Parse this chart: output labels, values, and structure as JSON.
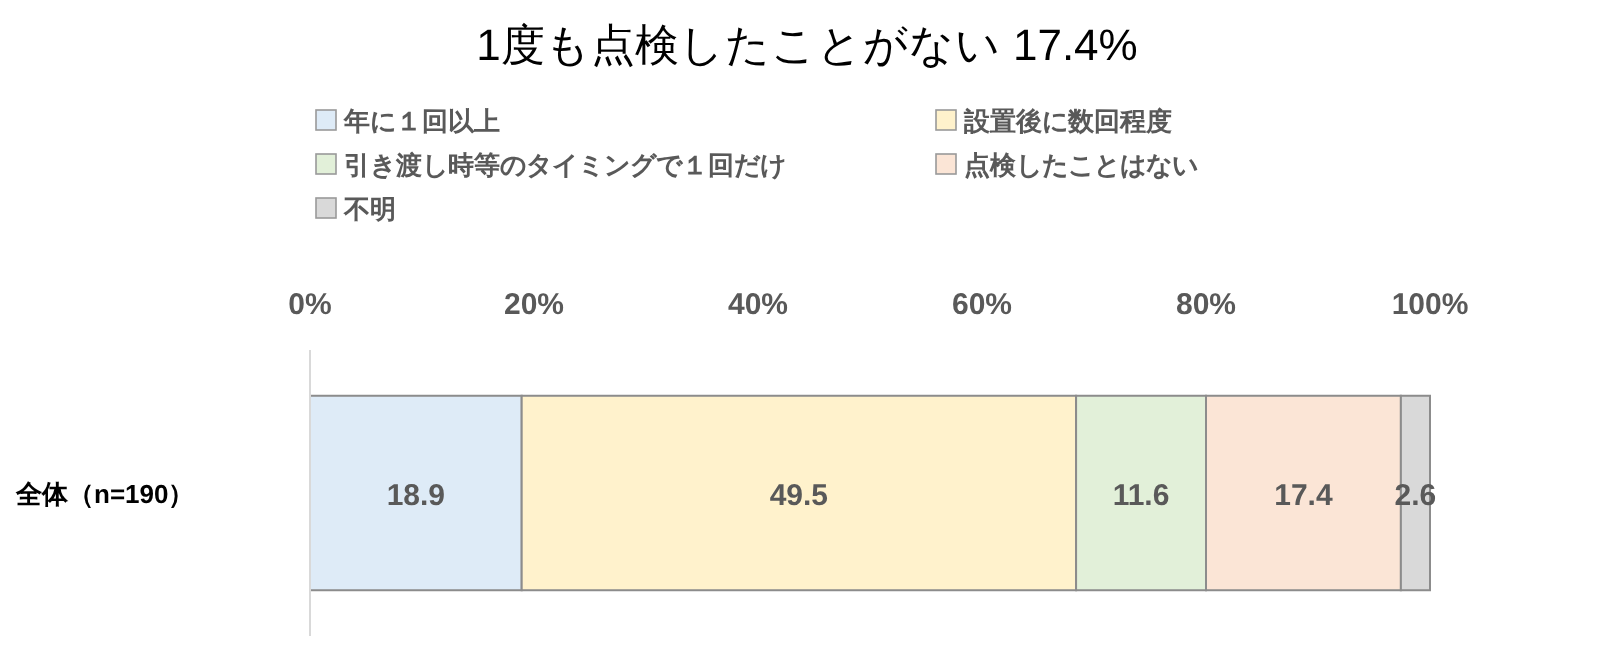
{
  "chart_data": {
    "type": "bar",
    "title": "1度も点検したことがない 17.4%",
    "orientation": "horizontal",
    "stacked": true,
    "categories": [
      "全体（n=190）"
    ],
    "series": [
      {
        "name": "年に１回以上",
        "color": "#deebf7",
        "values": [
          18.9
        ]
      },
      {
        "name": "設置後に数回程度",
        "color": "#fff2cc",
        "values": [
          49.5
        ]
      },
      {
        "name": "引き渡し時等のタイミングで１回だけ",
        "color": "#e2f0d9",
        "values": [
          11.6
        ]
      },
      {
        "name": "点検したことはない",
        "color": "#fbe5d6",
        "values": [
          17.4
        ]
      },
      {
        "name": "不明",
        "color": "#d9d9d9",
        "values": [
          2.6
        ]
      }
    ],
    "xlim": [
      0,
      100
    ],
    "xticks": [
      {
        "value": 0,
        "label": "0%"
      },
      {
        "value": 20,
        "label": "20%"
      },
      {
        "value": 40,
        "label": "40%"
      },
      {
        "value": 60,
        "label": "60%"
      },
      {
        "value": 80,
        "label": "80%"
      },
      {
        "value": 100,
        "label": "100%"
      }
    ],
    "data_labels": true,
    "legend": "top"
  }
}
